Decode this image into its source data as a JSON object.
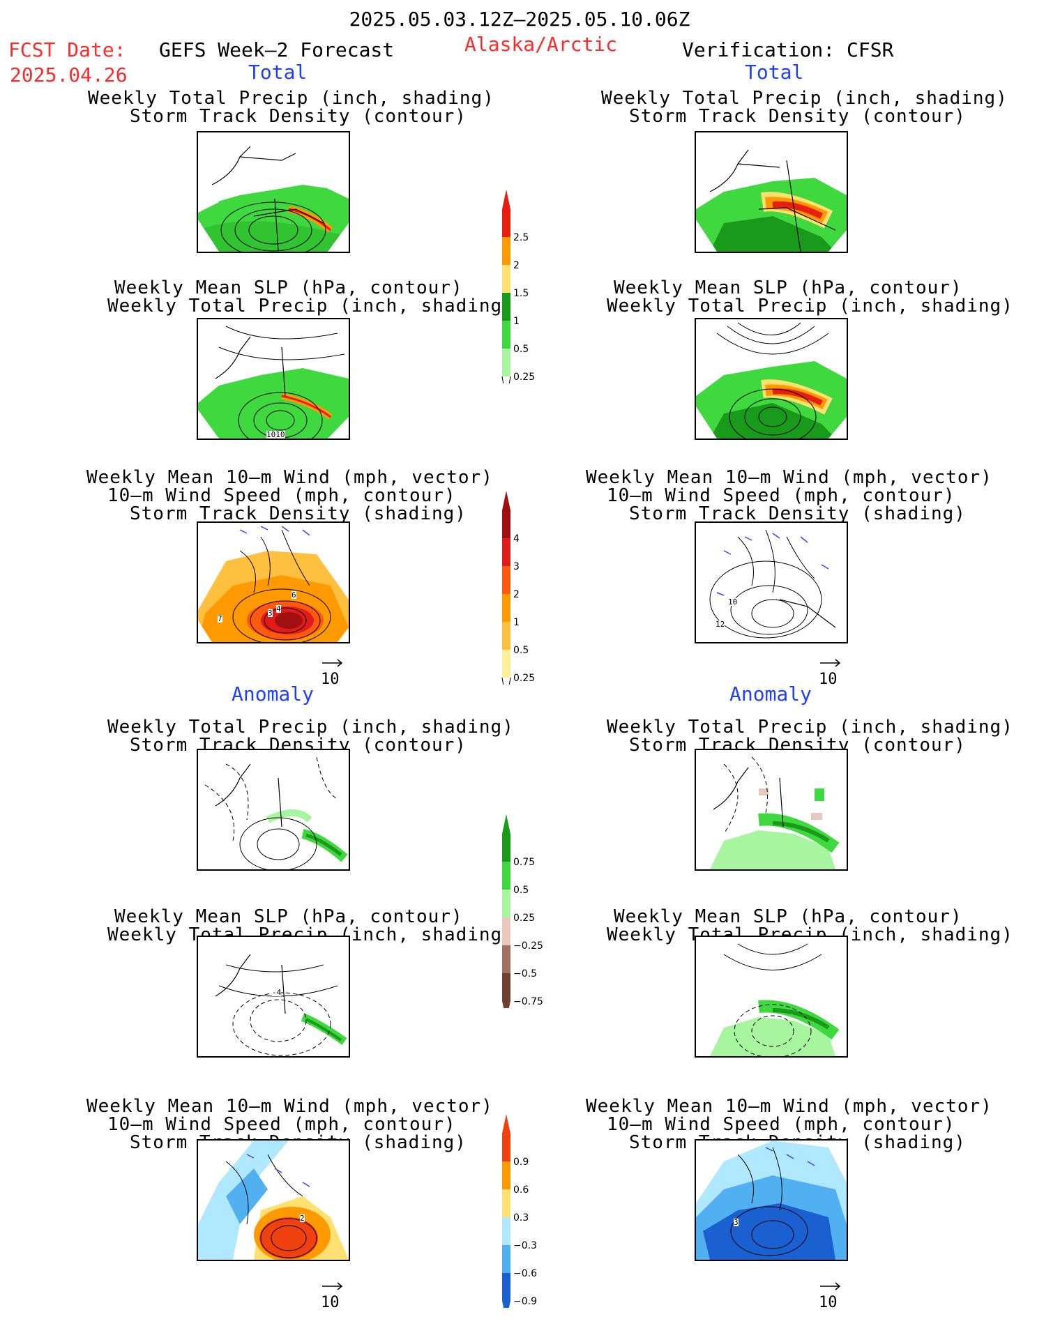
{
  "header": {
    "date_range": "2025.05.03.12Z–2025.05.10.06Z",
    "fcst_label": "FCST Date:",
    "fcst_date": "2025.04.26",
    "model": "GEFS Week–2 Forecast",
    "region": "Alaska/Arctic",
    "verification": "Verification: CFSR"
  },
  "sections": {
    "total": "Total",
    "anomaly": "Anomaly"
  },
  "titles": {
    "precip_track": [
      "Weekly Total Precip (inch, shading)",
      "Storm Track Density (contour)"
    ],
    "slp_precip": [
      "Weekly Mean SLP (hPa, contour)",
      "Weekly Total Precip (inch, shading)"
    ],
    "wind": [
      "Weekly Mean 10–m Wind (mph, vector)",
      "10–m Wind Speed (mph, contour)",
      "Storm Track Density (shading)"
    ]
  },
  "panels": [
    {
      "id": "total-precip-fcst",
      "icon": "precip-map",
      "colors": "green"
    },
    {
      "id": "total-precip-verif",
      "icon": "precip-map",
      "colors": "green-red"
    },
    {
      "id": "total-slp-fcst",
      "icon": "slp-map",
      "contour_label": "1010"
    },
    {
      "id": "total-slp-verif",
      "icon": "slp-map"
    },
    {
      "id": "total-wind-fcst",
      "icon": "wind-map",
      "contour_labels": [
        "7",
        "3",
        "4",
        "6"
      ]
    },
    {
      "id": "total-wind-verif",
      "icon": "wind-map",
      "contour_labels": [
        "10",
        "12"
      ]
    },
    {
      "id": "anom-precip-fcst",
      "icon": "precip-anomaly-map"
    },
    {
      "id": "anom-precip-verif",
      "icon": "precip-anomaly-map"
    },
    {
      "id": "anom-slp-fcst",
      "icon": "slp-anomaly-map",
      "contour_label": "-4"
    },
    {
      "id": "anom-slp-verif",
      "icon": "slp-anomaly-map"
    },
    {
      "id": "anom-wind-fcst",
      "icon": "wind-anomaly-map",
      "contour_label": "2"
    },
    {
      "id": "anom-wind-verif",
      "icon": "wind-anomaly-map",
      "contour_label": "3"
    }
  ],
  "vector_ref": "10",
  "colorbars": {
    "precip_total": {
      "labels": [
        "2.5",
        "2",
        "1.5",
        "1",
        "0.5",
        "0.25"
      ],
      "colors": [
        "#e81e0e",
        "#ff9900",
        "#ffe070",
        "#1a9a1a",
        "#3fd93f",
        "#a8f5a0"
      ]
    },
    "track_total": {
      "labels": [
        "4",
        "3",
        "2",
        "1",
        "0.5",
        "0.25"
      ],
      "colors": [
        "#a01010",
        "#e21a1a",
        "#ff5a10",
        "#ff9900",
        "#ffc040",
        "#fff09a"
      ]
    },
    "precip_anom": {
      "labels": [
        "0.75",
        "0.5",
        "0.25",
        "−0.25",
        "−0.5",
        "−0.75"
      ],
      "colors": [
        "#1a9a1a",
        "#3fd93f",
        "#a8f5a0",
        "#e8c8bc",
        "#a07060",
        "#704030"
      ]
    },
    "track_anom": {
      "labels": [
        "0.9",
        "0.6",
        "0.3",
        "−0.3",
        "−0.6",
        "−0.9"
      ],
      "colors": [
        "#f04010",
        "#ff9900",
        "#ffe070",
        "#b0e8ff",
        "#50b0f0",
        "#1a60d0"
      ]
    }
  }
}
